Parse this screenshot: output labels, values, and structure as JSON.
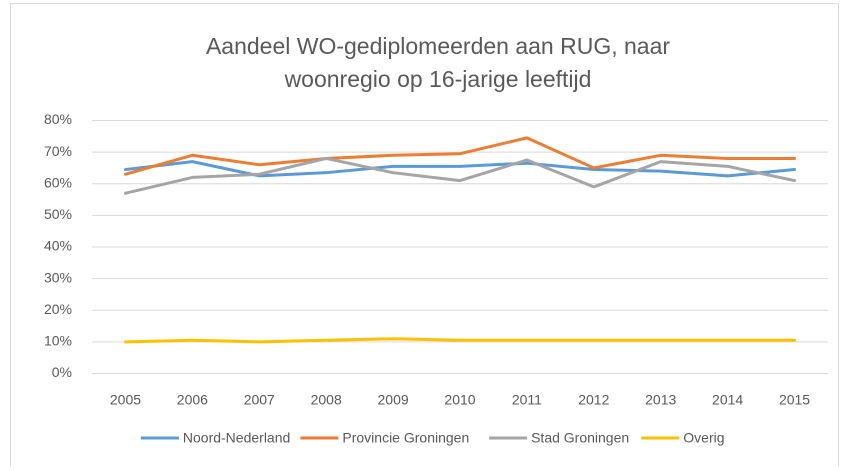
{
  "chart_data": {
    "type": "line",
    "title": [
      "Aandeel  WO-gediplomeerden aan RUG, naar",
      "woonregio op 16-jarige leeftijd"
    ],
    "categories": [
      "2005",
      "2006",
      "2007",
      "2008",
      "2009",
      "2010",
      "2011",
      "2012",
      "2013",
      "2014",
      "2015"
    ],
    "series": [
      {
        "name": "Noord-Nederland",
        "color": "#5b9bd5",
        "values": [
          64.5,
          67,
          62.5,
          63.5,
          65.5,
          65.5,
          66.5,
          64.5,
          64,
          62.5,
          64.5
        ]
      },
      {
        "name": "Provincie Groningen",
        "color": "#ed7d31",
        "values": [
          63,
          69,
          66,
          68,
          69,
          69.5,
          74.5,
          65,
          69,
          68,
          68
        ]
      },
      {
        "name": "Stad Groningen",
        "color": "#a5a5a5",
        "values": [
          57,
          62,
          63,
          68,
          63.5,
          61,
          67.5,
          59,
          67,
          65.5,
          61
        ]
      },
      {
        "name": "Overig",
        "color": "#ffc000",
        "values": [
          10,
          10.5,
          10,
          10.5,
          11,
          10.5,
          10.5,
          10.5,
          10.5,
          10.5,
          10.5
        ]
      }
    ],
    "ylim": [
      0,
      80
    ],
    "yticks": [
      {
        "value": 0,
        "label": "0%"
      },
      {
        "value": 10,
        "label": "10%"
      },
      {
        "value": 20,
        "label": "20%"
      },
      {
        "value": 30,
        "label": "30%"
      },
      {
        "value": 40,
        "label": "40%"
      },
      {
        "value": 50,
        "label": "50%"
      },
      {
        "value": 60,
        "label": "60%"
      },
      {
        "value": 70,
        "label": "70%"
      },
      {
        "value": 80,
        "label": "80%"
      }
    ],
    "grid": true,
    "legend": "bottom"
  }
}
